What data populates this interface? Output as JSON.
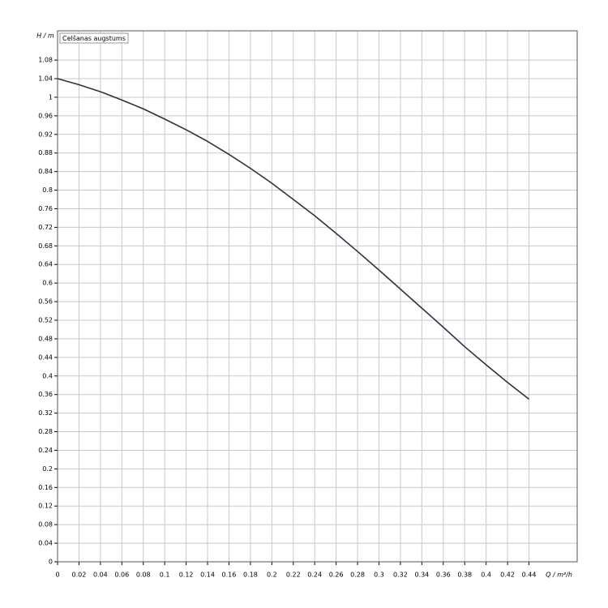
{
  "chart_data": {
    "type": "line",
    "x_label": "Q / m³/h",
    "y_label": "H / m",
    "x": [
      0,
      0.02,
      0.04,
      0.06,
      0.08,
      0.1,
      0.12,
      0.14,
      0.16,
      0.18,
      0.2,
      0.22,
      0.24,
      0.26,
      0.28,
      0.3,
      0.32,
      0.34,
      0.36,
      0.38,
      0.4,
      0.42,
      0.44
    ],
    "series": [
      {
        "name": "Celšanas augstums",
        "color": "#2b3340",
        "values": [
          1.04,
          1.027,
          1.012,
          0.994,
          0.975,
          0.953,
          0.93,
          0.905,
          0.877,
          0.847,
          0.815,
          0.78,
          0.745,
          0.707,
          0.668,
          0.628,
          0.587,
          0.546,
          0.505,
          0.463,
          0.424,
          0.386,
          0.35
        ]
      }
    ],
    "xlim": [
      0,
      0.485
    ],
    "ylim": [
      0,
      1.143
    ],
    "xticks": [
      0,
      0.02,
      0.04,
      0.06,
      0.08,
      0.1,
      0.12,
      0.14,
      0.16,
      0.18,
      0.2,
      0.22,
      0.24,
      0.26,
      0.28,
      0.3,
      0.32,
      0.34,
      0.36,
      0.38,
      0.4,
      0.42,
      0.44
    ],
    "yticks": [
      0,
      0.04,
      0.08,
      0.12,
      0.16,
      0.2,
      0.24,
      0.28,
      0.32,
      0.36,
      0.4,
      0.44,
      0.48,
      0.52,
      0.56,
      0.6,
      0.64,
      0.68,
      0.72,
      0.76,
      0.8,
      0.84,
      0.88,
      0.92,
      0.96,
      1,
      1.04,
      1.08
    ],
    "grid": true
  }
}
